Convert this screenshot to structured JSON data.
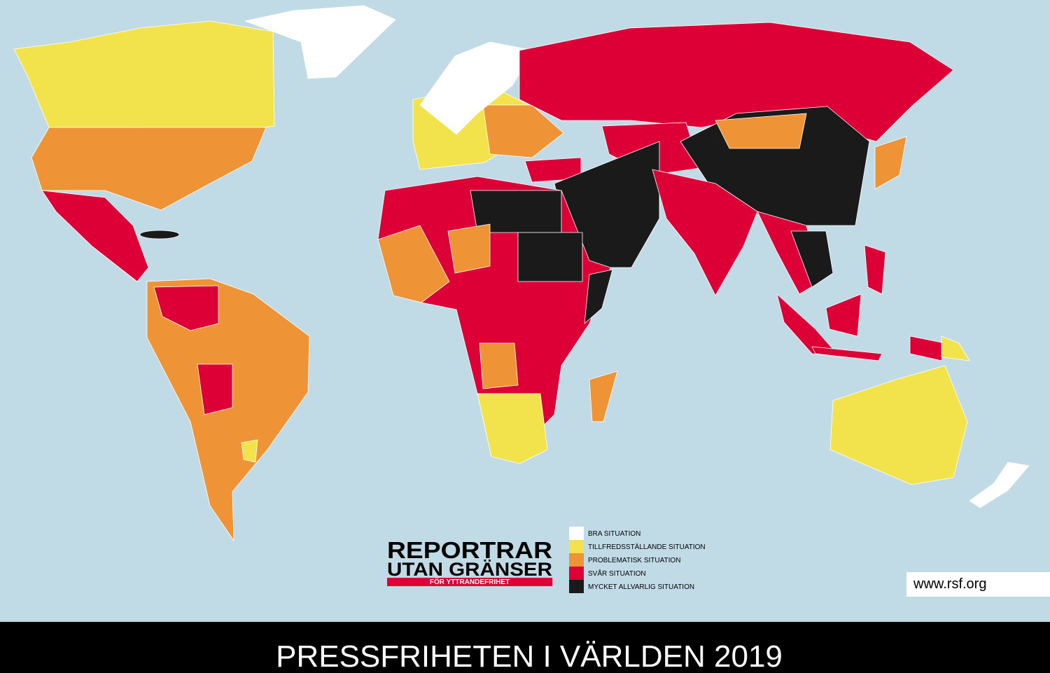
{
  "logo": {
    "line1": "REPORTRAR",
    "line2": "UTAN GRÄNSER",
    "tagline": "FÖR YTTRANDEFRIHET"
  },
  "legend": [
    {
      "label": "BRA SITUATION",
      "color": "#ffffff"
    },
    {
      "label": "TILLFREDSSTÄLLANDE SITUATION",
      "color": "#f2e34c"
    },
    {
      "label": "PROBLEMATISK SITUATION",
      "color": "#ef9337"
    },
    {
      "label": "SVÅR SITUATION",
      "color": "#dc0036"
    },
    {
      "label": "MYCKET ALLVARLIG SITUATION",
      "color": "#1a1a1a"
    }
  ],
  "url": "www.rsf.org",
  "title": "PRESSFRIHETEN I VÄRLDEN 2019"
}
